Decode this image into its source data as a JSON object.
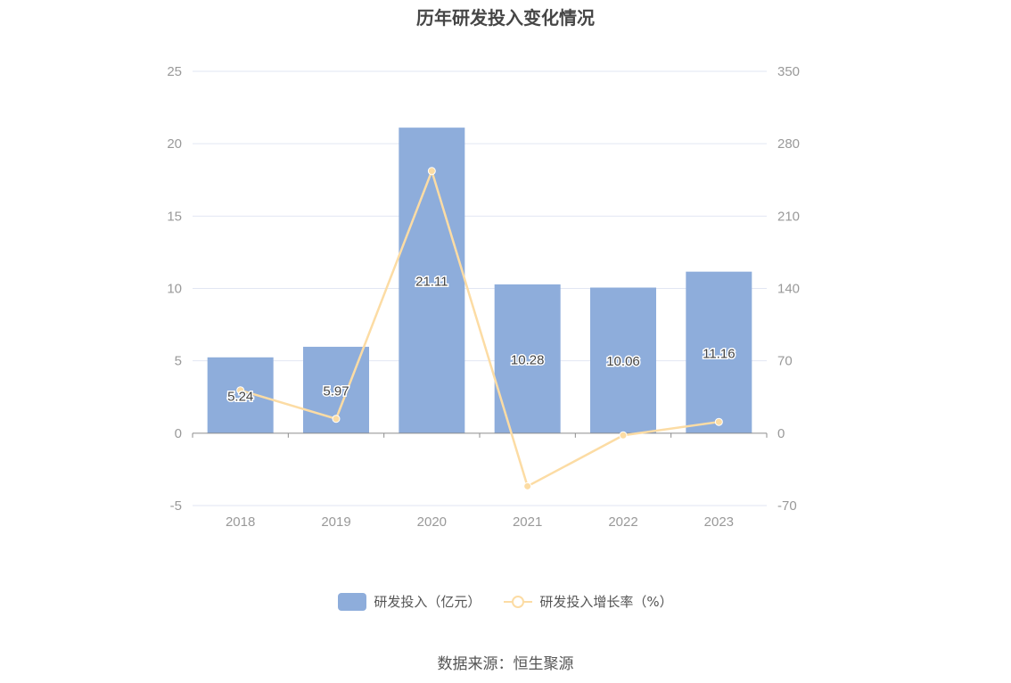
{
  "title": "历年研发投入变化情况",
  "source": "数据来源：恒生聚源",
  "colors": {
    "bar": "#8eaddb",
    "line": "#fcdca4",
    "grid": "#e2e6f3",
    "axis": "#8c8c8c"
  },
  "chart_data": {
    "type": "bar",
    "title": "历年研发投入变化情况",
    "categories": [
      "2018",
      "2019",
      "2020",
      "2021",
      "2022",
      "2023"
    ],
    "series": [
      {
        "name": "研发投入（亿元）",
        "type": "bar",
        "axis": "left",
        "values": [
          5.24,
          5.97,
          21.11,
          10.28,
          10.06,
          11.16
        ],
        "labels": [
          "5.24",
          "5.97",
          "21.11",
          "10.28",
          "10.06",
          "11.16"
        ]
      },
      {
        "name": "研发投入增长率（%）",
        "type": "line",
        "axis": "right",
        "values": [
          41.5,
          13.9,
          253.6,
          -51.3,
          -2.1,
          10.9
        ]
      }
    ],
    "y_left": {
      "min": -5,
      "max": 25,
      "ticks": [
        "-5",
        "0",
        "5",
        "10",
        "15",
        "20",
        "25"
      ]
    },
    "y_right": {
      "min": -70,
      "max": 350,
      "ticks": [
        "-70",
        "0",
        "70",
        "140",
        "210",
        "280",
        "350"
      ]
    },
    "grid": true,
    "legend": "bottom-center"
  }
}
